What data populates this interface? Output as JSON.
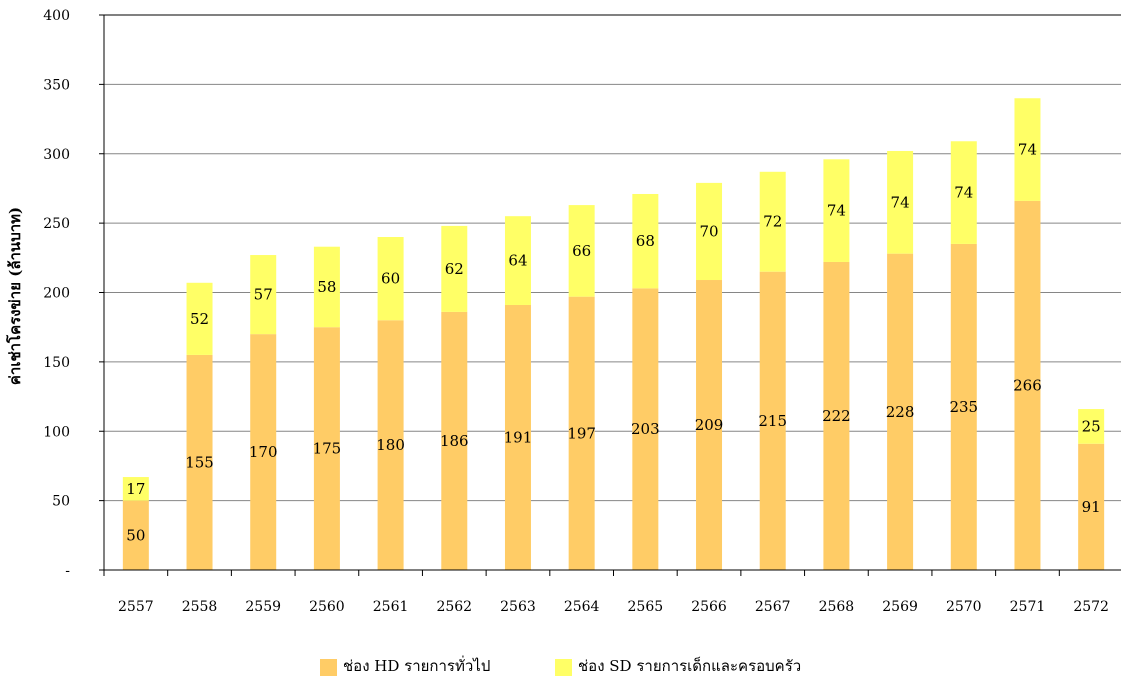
{
  "chart_data": {
    "type": "bar",
    "stacked": true,
    "categories": [
      "2557",
      "2558",
      "2559",
      "2560",
      "2561",
      "2562",
      "2563",
      "2564",
      "2565",
      "2566",
      "2567",
      "2568",
      "2569",
      "2570",
      "2571",
      "2572"
    ],
    "series": [
      {
        "name": "ช่อง HD รายการทั่วไป",
        "color": "#FFCC66",
        "values": [
          50,
          155,
          170,
          175,
          180,
          186,
          191,
          197,
          203,
          209,
          215,
          222,
          228,
          235,
          266,
          91
        ]
      },
      {
        "name": "ช่อง SD รายการเด็กและครอบครัว",
        "color": "#FFFF66",
        "values": [
          17,
          52,
          57,
          58,
          60,
          62,
          64,
          66,
          68,
          70,
          72,
          74,
          74,
          74,
          74,
          25
        ]
      }
    ],
    "title": "",
    "xlabel": "",
    "ylabel": "ค่าเช่าโครงข่าย (ล้านบาท)",
    "ylim": [
      0,
      400
    ],
    "yticks": [
      0,
      50,
      100,
      150,
      200,
      250,
      300,
      350,
      400
    ],
    "ytick_labels": [
      "-",
      "50",
      "100",
      "150",
      "200",
      "250",
      "300",
      "350",
      "400"
    ],
    "grid": true,
    "legend_position": "bottom-center"
  }
}
